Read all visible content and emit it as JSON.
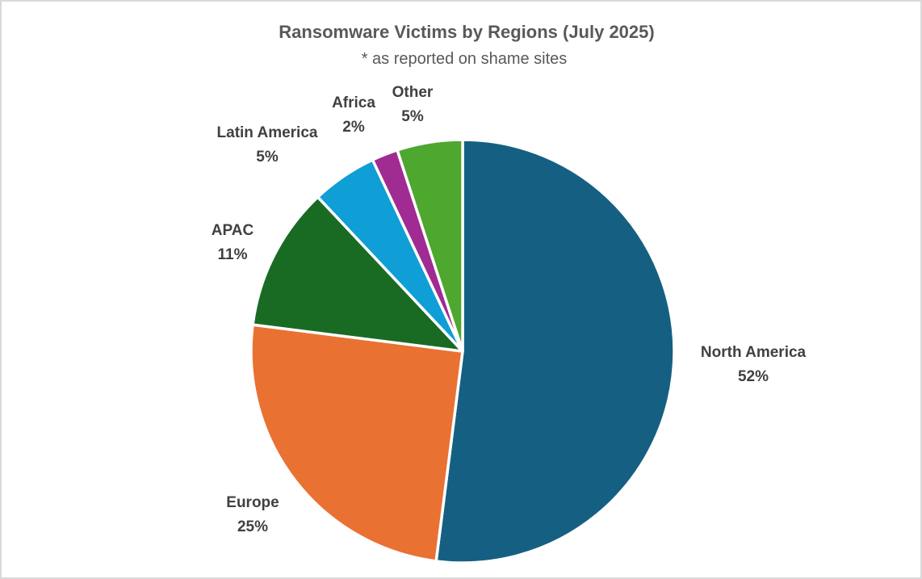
{
  "page": {
    "background_color": "#ffffff",
    "border_color": "#d9d9d9"
  },
  "chart_data": {
    "type": "pie",
    "title": "Ransomware Victims by Regions (July 2025)",
    "subtitle": "* as reported on shame sites",
    "title_color": "#595959",
    "label_text_color": "#404040",
    "start_angle_deg": 0,
    "direction": "clockwise",
    "unit": "%",
    "categories": [
      "North America",
      "Europe",
      "APAC",
      "Latin America",
      "Africa",
      "Other"
    ],
    "values": [
      52,
      25,
      11,
      5,
      2,
      5
    ],
    "value_labels": [
      "52%",
      "25%",
      "11%",
      "5%",
      "2%",
      "5%"
    ],
    "colors": [
      "#156082",
      "#E97132",
      "#196B24",
      "#0F9ED5",
      "#A02B93",
      "#4EA72E"
    ],
    "separator_color": "#ffffff",
    "legend": "none",
    "labels_position": "outside"
  }
}
